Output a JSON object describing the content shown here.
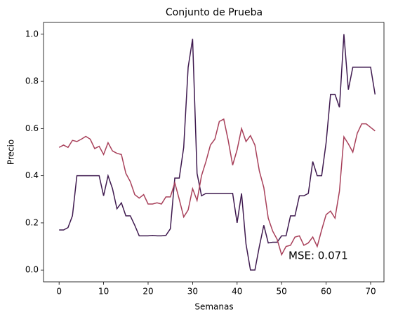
{
  "chart_data": {
    "type": "line",
    "title": "Conjunto de Prueba",
    "xlabel": "Semanas",
    "ylabel": "Precio",
    "annotation": "MSE: 0.071",
    "x": [
      0,
      1,
      2,
      3,
      4,
      5,
      6,
      7,
      8,
      9,
      10,
      11,
      12,
      13,
      14,
      15,
      16,
      17,
      18,
      19,
      20,
      21,
      22,
      23,
      24,
      25,
      26,
      27,
      28,
      29,
      30,
      31,
      32,
      33,
      34,
      35,
      36,
      37,
      38,
      39,
      40,
      41,
      42,
      43,
      44,
      45,
      46,
      47,
      48,
      49,
      50,
      51,
      52,
      53,
      54,
      55,
      56,
      57,
      58,
      59,
      60,
      61,
      62,
      63,
      64,
      65,
      66,
      67,
      68,
      69,
      70,
      71
    ],
    "series": [
      {
        "color": "#3f1a4f",
        "values": [
          0.17,
          0.17,
          0.18,
          0.23,
          0.4,
          0.4,
          0.4,
          0.4,
          0.4,
          0.4,
          0.315,
          0.4,
          0.345,
          0.26,
          0.285,
          0.23,
          0.23,
          0.19,
          0.145,
          0.145,
          0.145,
          0.147,
          0.145,
          0.145,
          0.147,
          0.175,
          0.39,
          0.39,
          0.52,
          0.86,
          0.98,
          0.41,
          0.315,
          0.325,
          0.325,
          0.325,
          0.325,
          0.325,
          0.325,
          0.325,
          0.2,
          0.325,
          0.11,
          0.0,
          0.0,
          0.1,
          0.19,
          0.115,
          0.118,
          0.118,
          0.145,
          0.145,
          0.23,
          0.23,
          0.315,
          0.315,
          0.325,
          0.46,
          0.4,
          0.4,
          0.54,
          0.745,
          0.745,
          0.69,
          1.0,
          0.765,
          0.86,
          0.86,
          0.86,
          0.86,
          0.86,
          0.745
        ]
      },
      {
        "color": "#a8405a",
        "values": [
          0.52,
          0.53,
          0.52,
          0.55,
          0.545,
          0.555,
          0.567,
          0.555,
          0.515,
          0.525,
          0.49,
          0.54,
          0.505,
          0.495,
          0.49,
          0.41,
          0.375,
          0.32,
          0.305,
          0.32,
          0.28,
          0.28,
          0.285,
          0.28,
          0.31,
          0.31,
          0.37,
          0.3,
          0.225,
          0.255,
          0.345,
          0.295,
          0.4,
          0.46,
          0.53,
          0.555,
          0.63,
          0.64,
          0.55,
          0.445,
          0.51,
          0.6,
          0.545,
          0.57,
          0.53,
          0.42,
          0.35,
          0.22,
          0.165,
          0.13,
          0.065,
          0.1,
          0.105,
          0.14,
          0.145,
          0.105,
          0.115,
          0.14,
          0.1,
          0.17,
          0.235,
          0.25,
          0.22,
          0.335,
          0.565,
          0.535,
          0.5,
          0.58,
          0.62,
          0.62,
          0.605,
          0.59
        ]
      }
    ],
    "xlim": [
      -3.5,
      73
    ],
    "ylim": [
      -0.05,
      1.05
    ],
    "xticks": [
      0,
      10,
      20,
      30,
      40,
      50,
      60,
      70
    ],
    "yticks": [
      {
        "value": 0,
        "label": "0.0"
      },
      0.2,
      0.4,
      0.6,
      0.8,
      {
        "value": 1,
        "label": "1.0"
      }
    ],
    "grid": false
  }
}
